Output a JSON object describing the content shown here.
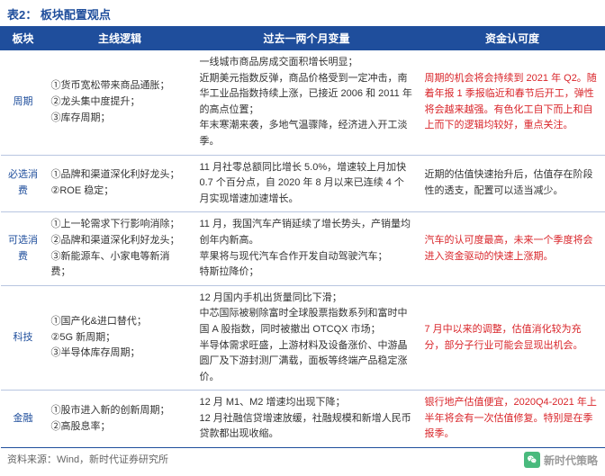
{
  "title": "表2：  板块配置观点",
  "header": {
    "sector": "板块",
    "logic": "主线逻辑",
    "change": "过去一两个月变量",
    "fund": "资金认可度"
  },
  "rows": [
    {
      "sector": "周期",
      "logic": "①货币宽松带来商品通胀；\n②龙头集中度提升；\n③库存周期；",
      "change": "一线城市商品房成交面积增长明显；\n近期美元指数反弹，商品价格受到一定冲击，南华工业品指数持续上涨，已接近 2006 和 2011 年的高点位置；\n年末寒潮来袭，多地气温骤降，经济进入开工淡季。",
      "fund": "周期的机会将会持续到 2021 年 Q2。随着年报 1 季报临近和春节后开工，弹性将会越来越强。有色化工自下而上和自上而下的逻辑均较好，重点关注。",
      "fund_red": true
    },
    {
      "sector": "必选消费",
      "logic": "①品牌和渠道深化利好龙头；\n②ROE 稳定；",
      "change": "11 月社零总额同比增长 5.0%，增速较上月加快 0.7 个百分点，自 2020 年 8 月以来已连续 4 个月实现增速加速增长。",
      "fund": "近期的估值快速抬升后，估值存在阶段性的透支，配置可以适当减少。",
      "fund_red": false
    },
    {
      "sector": "可选消费",
      "logic": "①上一轮需求下行影响消除；\n②品牌和渠道深化利好龙头；\n③新能源车、小家电等新消费；",
      "change": "11 月，我国汽车产销延续了增长势头，产销量均创年内新高。\n苹果将与现代汽车合作开发自动驾驶汽车；\n特斯拉降价；",
      "fund": "汽车的认可度最高，未来一个季度将会进入资金驱动的快速上涨期。",
      "fund_red": true
    },
    {
      "sector": "科技",
      "logic": "①国产化&进口替代；\n②5G 新周期；\n③半导体库存周期；",
      "change": "12 月国内手机出货量同比下滑；\n中芯国际被剔除富时全球股票指数系列和富时中国 A 股指数，同时被撤出 OTCQX 市场；\n半导体需求旺盛，上游材料及设备涨价、中游晶圆厂及下游封测厂满载，面板等终端产品稳定涨价。",
      "fund": "7 月中以来的调整，估值消化较为充分，部分子行业可能会显现出机会。",
      "fund_red": true
    },
    {
      "sector": "金融",
      "logic": "①股市进入新的创新周期；\n②高股息率；",
      "change": "12 月 M1、M2 增速均出现下降；\n12 月社融信贷增速放缓，社融规模和新增人民币贷款都出现收缩。",
      "fund": "银行地产估值便宜，2020Q4-2021 年上半年将会有一次估值修复。特别是在季报季。",
      "fund_red": true
    }
  ],
  "source": "资料来源：Wind，新时代证券研究所",
  "watermark": "新时代策略"
}
